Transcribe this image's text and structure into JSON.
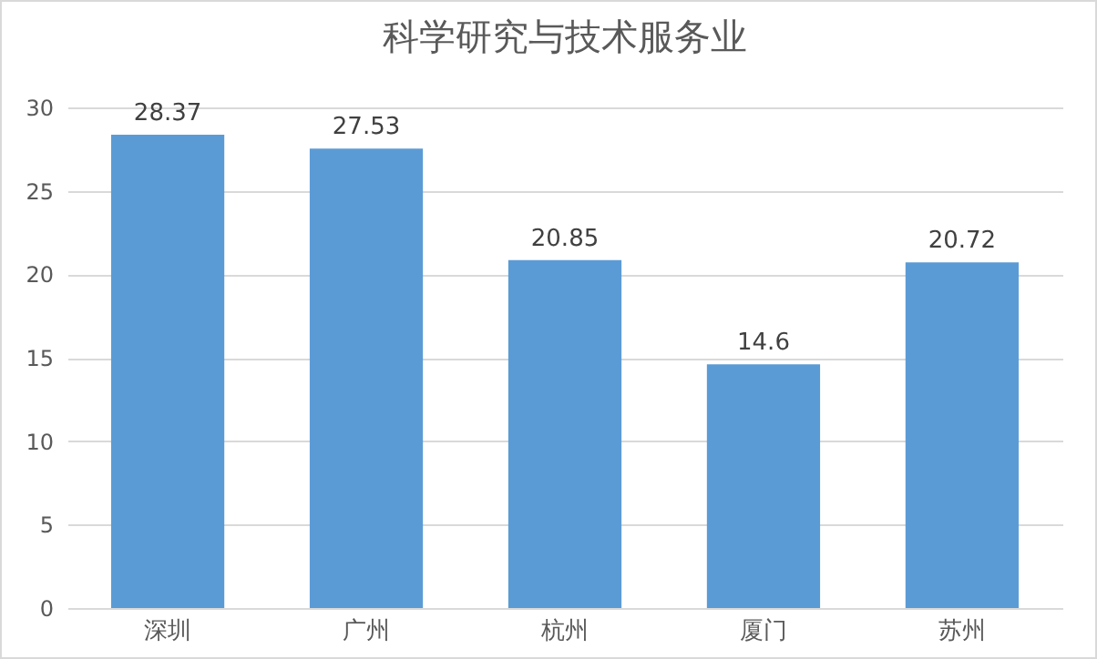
{
  "chart_data": {
    "type": "bar",
    "title": "科学研究与技术服务业",
    "categories": [
      "深圳",
      "广州",
      "杭州",
      "厦门",
      "苏州"
    ],
    "values": [
      28.37,
      27.53,
      20.85,
      14.6,
      20.72
    ],
    "color": "#5b9bd5",
    "ylim": [
      0,
      30
    ],
    "yticks": [
      0,
      5,
      10,
      15,
      20,
      25,
      30
    ],
    "grid": "y",
    "data_labels": true
  }
}
